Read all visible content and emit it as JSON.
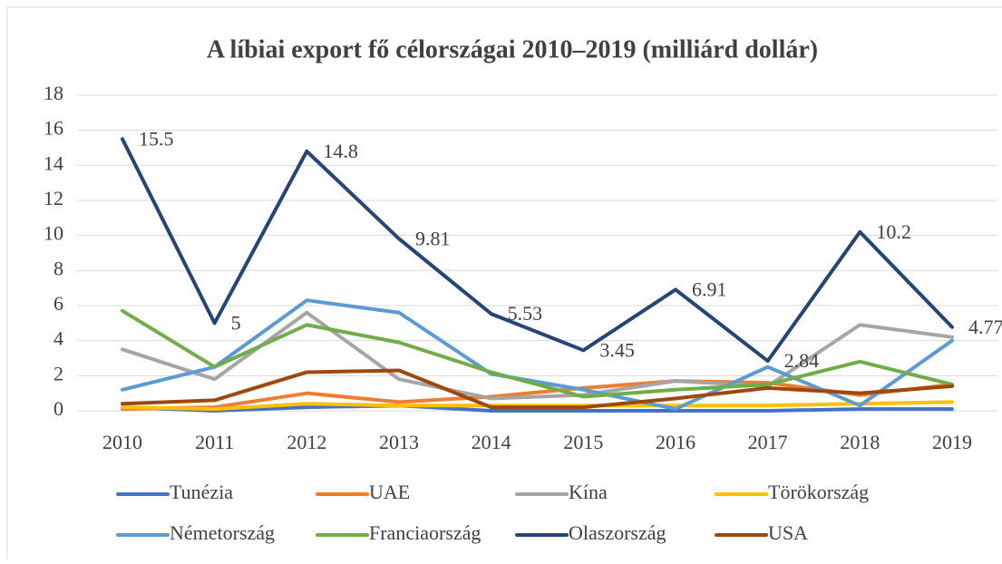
{
  "chart_data": {
    "type": "line",
    "title": "A líbiai export fő célországai 2010–2019 (milliárd dollár)",
    "categories": [
      "2010",
      "2011",
      "2012",
      "2013",
      "2014",
      "2015",
      "2016",
      "2017",
      "2018",
      "2019"
    ],
    "ylim": [
      0,
      18
    ],
    "yticks": [
      0,
      2,
      4,
      6,
      8,
      10,
      12,
      14,
      16,
      18
    ],
    "grid": true,
    "legend": "bottom",
    "series": [
      {
        "name": "Tunézia",
        "color": "#4472c4",
        "values": [
          0.2,
          0,
          0.2,
          0.3,
          0,
          0,
          0,
          0,
          0.1,
          0.1
        ]
      },
      {
        "name": "UAE",
        "color": "#ed7d31",
        "values": [
          0.1,
          0.2,
          1.0,
          0.5,
          0.8,
          1.3,
          1.7,
          1.6,
          0.9,
          1.5
        ]
      },
      {
        "name": "Kína",
        "color": "#a5a5a5",
        "values": [
          3.5,
          1.8,
          5.6,
          1.8,
          0.7,
          0.9,
          1.7,
          1.4,
          4.9,
          4.2
        ]
      },
      {
        "name": "Törökország",
        "color": "#ffc000",
        "values": [
          0.2,
          0.1,
          0.4,
          0.3,
          0.3,
          0.3,
          0.3,
          0.3,
          0.4,
          0.5
        ]
      },
      {
        "name": "Németország",
        "color": "#5b9bd5",
        "values": [
          1.2,
          2.5,
          6.3,
          5.6,
          2.1,
          1.2,
          0.1,
          2.5,
          0.3,
          4.0
        ]
      },
      {
        "name": "Franciaország",
        "color": "#70ad47",
        "values": [
          5.7,
          2.5,
          4.9,
          3.9,
          2.2,
          0.8,
          1.2,
          1.5,
          2.8,
          1.5
        ]
      },
      {
        "name": "Olaszország",
        "color": "#264478",
        "values": [
          15.5,
          5,
          14.8,
          9.81,
          5.53,
          3.45,
          6.91,
          2.84,
          10.2,
          4.77
        ],
        "data_labels": true
      },
      {
        "name": "USA",
        "color": "#9e480e",
        "values": [
          0.4,
          0.6,
          2.2,
          2.3,
          0.2,
          0.2,
          0.7,
          1.3,
          1.0,
          1.4
        ]
      }
    ]
  }
}
